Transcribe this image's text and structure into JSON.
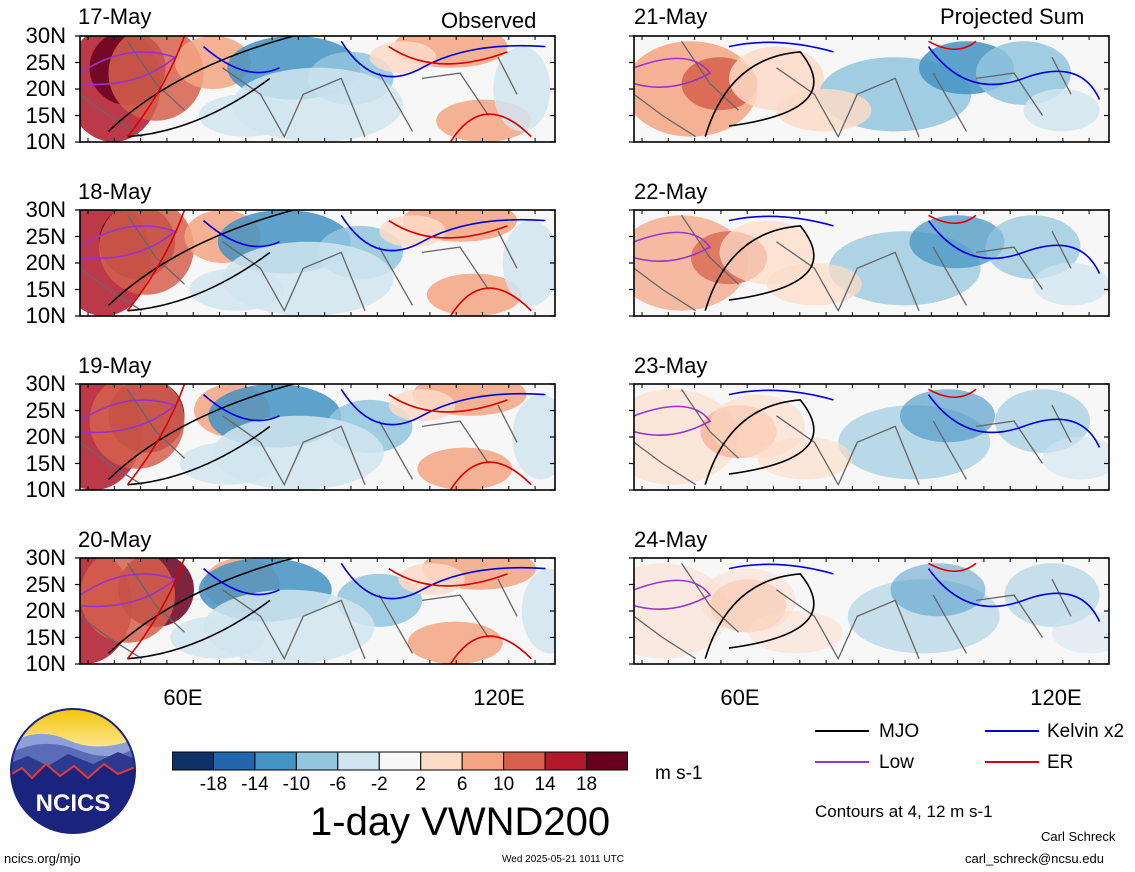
{
  "header": {
    "left_title": "Observed",
    "right_title": "Projected Sum"
  },
  "panels": [
    {
      "date": "17-May",
      "column": "observed"
    },
    {
      "date": "18-May",
      "column": "observed"
    },
    {
      "date": "19-May",
      "column": "observed"
    },
    {
      "date": "20-May",
      "column": "observed"
    },
    {
      "date": "21-May",
      "column": "projected"
    },
    {
      "date": "22-May",
      "column": "projected"
    },
    {
      "date": "23-May",
      "column": "projected"
    },
    {
      "date": "24-May",
      "column": "projected"
    }
  ],
  "lat_labels": [
    "30N",
    "25N",
    "20N",
    "15N",
    "10N"
  ],
  "lon_labels": [
    "60E",
    "120E"
  ],
  "colorbar": {
    "labels": [
      "-18",
      "-14",
      "-10",
      "-6",
      "-2",
      "2",
      "6",
      "10",
      "14",
      "18"
    ],
    "units": "m s-1",
    "colors": [
      "#0d3366",
      "#2166ac",
      "#4393c3",
      "#92c5de",
      "#d1e5f0",
      "#f7f7f7",
      "#fddbc7",
      "#f4a582",
      "#d6604d",
      "#b2182b",
      "#67001f"
    ]
  },
  "title": "1-day VWND200",
  "legend": {
    "items": [
      {
        "label": "MJO",
        "color": "#000000"
      },
      {
        "label": "Low",
        "color": "#9933cc"
      },
      {
        "label": "Kelvin x2",
        "color": "#0000dd"
      },
      {
        "label": "ER",
        "color": "#dd0000"
      }
    ],
    "contour_note": "Contours at 4, 12 m s-1"
  },
  "footer": {
    "logo_text": "NCICS",
    "url": "ncics.org/mjo",
    "timestamp": "Wed 2025-05-21 1011 UTC",
    "author": "Carl Schreck",
    "email": "carl_schreck@ncsu.edu"
  }
}
